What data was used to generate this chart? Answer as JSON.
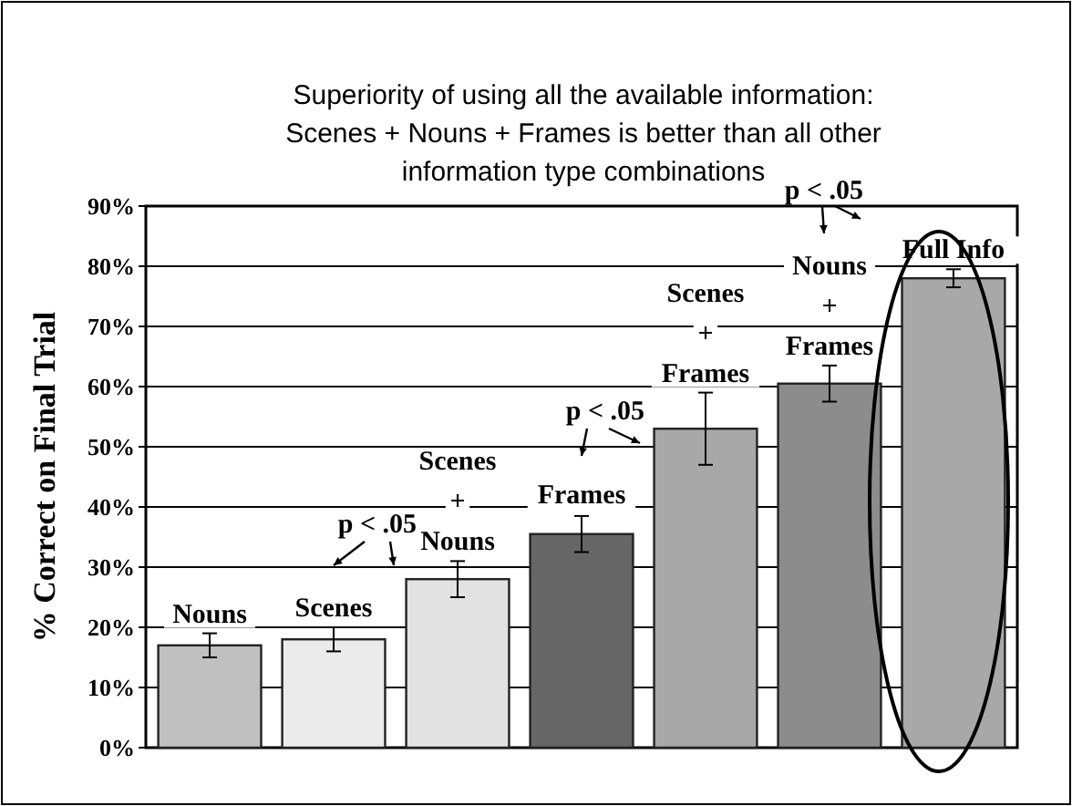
{
  "chart_data": {
    "type": "bar",
    "title": "Superiority of using all the available information:\nScenes + Nouns + Frames is better than all other\ninformation type combinations",
    "ylabel": "% Correct on Final Trial",
    "categories": [
      "Nouns",
      "Scenes",
      "Scenes\n+\nNouns",
      "Frames",
      "Scenes\n+\nFrames",
      "Nouns\n+\nFrames",
      "Full Info"
    ],
    "values": [
      17,
      18,
      28,
      35.5,
      53,
      60.5,
      78
    ],
    "errors": [
      2,
      2,
      3,
      3,
      6,
      3,
      1.5
    ],
    "colors": [
      "#c0c0c0",
      "#ebebeb",
      "#e2e2e2",
      "#666666",
      "#a8a8a8",
      "#8c8c8c",
      "#a8a8a8"
    ],
    "ylim": [
      0,
      90
    ],
    "yticks": [
      {
        "value": 0,
        "label": "0%"
      },
      {
        "value": 10,
        "label": "10%"
      },
      {
        "value": 20,
        "label": "20%"
      },
      {
        "value": 30,
        "label": "30%"
      },
      {
        "value": 40,
        "label": "40%"
      },
      {
        "value": 50,
        "label": "50%"
      },
      {
        "value": 60,
        "label": "60%"
      },
      {
        "value": 70,
        "label": "70%"
      },
      {
        "value": 80,
        "label": "80%"
      },
      {
        "value": 90,
        "label": "90%"
      }
    ],
    "grid": "y",
    "annotations": [
      "p < .05",
      "p < .05",
      "p < .05"
    ]
  }
}
